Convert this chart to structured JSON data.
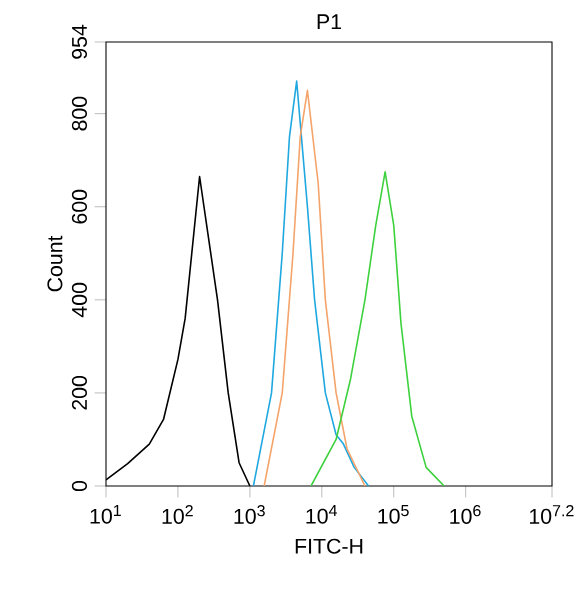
{
  "chart_data": {
    "type": "line",
    "title": "P1",
    "xlabel": "FITC-H",
    "ylabel": "Count",
    "log": "x",
    "marker": "none",
    "line_style": "solid",
    "xlim": [
      10,
      15848932
    ],
    "ylim": [
      0,
      954
    ],
    "xticks": [
      {
        "value": 10,
        "label": "10$^{1}$"
      },
      {
        "value": 100,
        "label": "10$^{2}$"
      },
      {
        "value": 1000,
        "label": "10$^{3}$"
      },
      {
        "value": 10000,
        "label": "10$^{4}$"
      },
      {
        "value": 100000,
        "label": "10$^{5}$"
      },
      {
        "value": 1000000,
        "label": "10$^{6}$"
      },
      {
        "value": 15848932,
        "label": "10$^{7.2}$"
      }
    ],
    "yticks": [
      0,
      200,
      400,
      600,
      800,
      954
    ],
    "series": [
      {
        "color": "#000000",
        "x": [
          10,
          20,
          40,
          63,
          100,
          126,
          200,
          355,
          500,
          708,
          1000
        ],
        "values": [
          13,
          48,
          90,
          143,
          272,
          360,
          665,
          400,
          200,
          50,
          0
        ]
      },
      {
        "color": "#1fa8e0",
        "x": [
          1120,
          2000,
          2820,
          3550,
          4470,
          6310,
          7940,
          11200,
          15800,
          20000,
          28200,
          44700
        ],
        "values": [
          0,
          200,
          500,
          750,
          870,
          600,
          400,
          200,
          110,
          90,
          40,
          0
        ]
      },
      {
        "color": "#f4a46a",
        "x": [
          1580,
          2820,
          3980,
          5010,
          6310,
          8910,
          11200,
          15800,
          22400,
          39800
        ],
        "values": [
          0,
          200,
          500,
          750,
          850,
          650,
          400,
          200,
          80,
          0
        ]
      },
      {
        "color": "#3ed13e",
        "x": [
          7080,
          15800,
          25100,
          39800,
          56200,
          75900,
          100000,
          126000,
          178000,
          282000,
          501000
        ],
        "values": [
          0,
          100,
          230,
          400,
          560,
          675,
          560,
          350,
          150,
          40,
          0
        ]
      }
    ]
  }
}
